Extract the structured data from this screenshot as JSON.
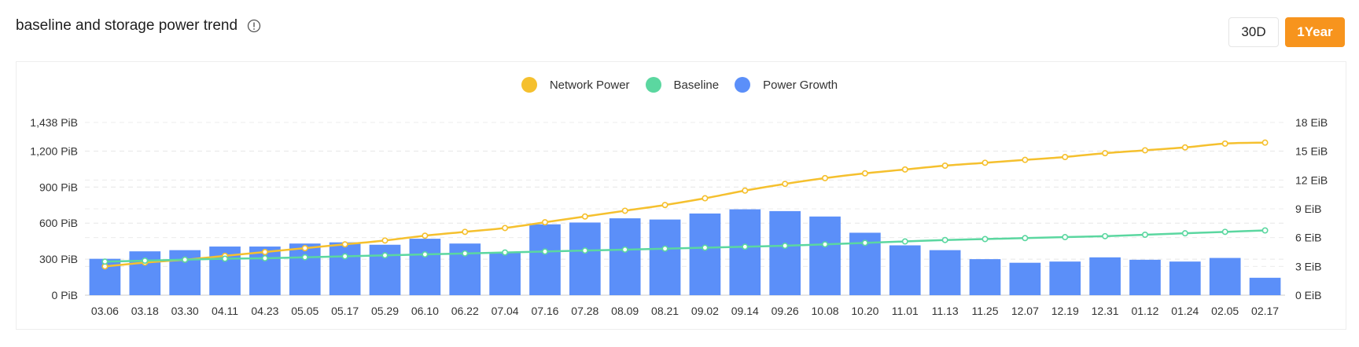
{
  "header": {
    "title": "baseline and storage power trend",
    "info_icon": "info-circle-icon"
  },
  "range_toggle": {
    "options": [
      "30D",
      "1Year"
    ],
    "selected": "1Year"
  },
  "colors": {
    "network_power": "#f5c02e",
    "baseline": "#5bd7a0",
    "power_growth": "#5b8ff9",
    "accent": "#f7941d"
  },
  "chart_data": {
    "type": "bar",
    "categories": [
      "03.06",
      "03.18",
      "03.30",
      "04.11",
      "04.23",
      "05.05",
      "05.17",
      "05.29",
      "06.10",
      "06.22",
      "07.04",
      "07.16",
      "07.28",
      "08.09",
      "08.21",
      "09.02",
      "09.14",
      "09.26",
      "10.08",
      "10.20",
      "11.01",
      "11.13",
      "11.25",
      "12.07",
      "12.19",
      "12.31",
      "01.12",
      "01.24",
      "02.05",
      "02.17"
    ],
    "legend": [
      "Network Power",
      "Baseline",
      "Power Growth"
    ],
    "legend_position": "top-center",
    "left_axis": {
      "ticks": [
        "0 PiB",
        "300 PiB",
        "600 PiB",
        "900 PiB",
        "1,200 PiB",
        "1,438 PiB"
      ],
      "tick_values": [
        0,
        300,
        600,
        900,
        1200,
        1438
      ],
      "ylim": [
        0,
        1438
      ]
    },
    "right_axis": {
      "ticks": [
        "0 EiB",
        "3 EiB",
        "6 EiB",
        "9 EiB",
        "12 EiB",
        "15 EiB",
        "18 EiB"
      ],
      "tick_values": [
        0,
        3,
        6,
        9,
        12,
        15,
        18
      ],
      "ylim": [
        0,
        18
      ]
    },
    "grid": true,
    "series": [
      {
        "name": "Power Growth",
        "type": "bar",
        "axis": "left",
        "values": [
          303,
          365,
          375,
          405,
          405,
          430,
          440,
          420,
          470,
          430,
          355,
          590,
          605,
          640,
          630,
          680,
          715,
          700,
          655,
          520,
          415,
          375,
          300,
          270,
          280,
          315,
          295,
          280,
          310,
          145
        ]
      },
      {
        "name": "Network Power",
        "type": "line",
        "axis": "right",
        "values": [
          3.0,
          3.4,
          3.7,
          4.1,
          4.5,
          4.9,
          5.3,
          5.7,
          6.2,
          6.6,
          7.0,
          7.6,
          8.2,
          8.8,
          9.4,
          10.1,
          10.9,
          11.6,
          12.2,
          12.7,
          13.1,
          13.5,
          13.8,
          14.1,
          14.4,
          14.8,
          15.1,
          15.4,
          15.8,
          15.9
        ]
      },
      {
        "name": "Baseline",
        "type": "line",
        "axis": "right",
        "values": [
          3.5,
          3.6,
          3.7,
          3.8,
          3.85,
          3.95,
          4.05,
          4.15,
          4.25,
          4.35,
          4.45,
          4.55,
          4.65,
          4.75,
          4.85,
          4.95,
          5.05,
          5.15,
          5.3,
          5.45,
          5.6,
          5.75,
          5.85,
          5.95,
          6.05,
          6.15,
          6.3,
          6.45,
          6.6,
          6.75
        ]
      }
    ]
  }
}
